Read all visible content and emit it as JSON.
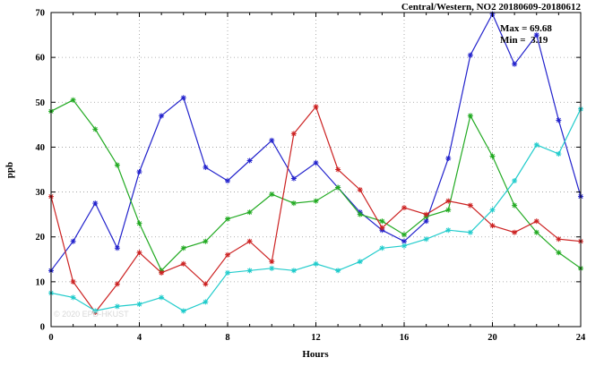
{
  "title": "Central/Western, NO2 20180609-20180612",
  "annotation": {
    "max_label": "Max = 69.68",
    "min_label": "Min =  3.19"
  },
  "watermark": "© 2020 EPD-HKUST",
  "axes": {
    "ylabel": "ppb",
    "xlabel": "Hours"
  },
  "chart_data": {
    "type": "line",
    "title": "Central/Western, NO2 20180609-20180612",
    "xlabel": "Hours",
    "ylabel": "ppb",
    "xlim": [
      0,
      24
    ],
    "ylim": [
      0,
      70
    ],
    "xticks": [
      0,
      4,
      8,
      12,
      16,
      20,
      24
    ],
    "yticks": [
      0,
      10,
      20,
      30,
      40,
      50,
      60,
      70
    ],
    "minor_xtick_every": 1,
    "grid": true,
    "legend": "none",
    "marker": "asterisk",
    "annotations": [
      "Max = 69.68",
      "Min =  3.19"
    ],
    "x": [
      0,
      1,
      2,
      3,
      4,
      5,
      6,
      7,
      8,
      9,
      10,
      11,
      12,
      13,
      14,
      15,
      16,
      17,
      18,
      19,
      20,
      21,
      22,
      23,
      24
    ],
    "series": [
      {
        "name": "blue",
        "color": "#2222cc",
        "values": [
          12.5,
          19,
          27.5,
          17.5,
          34.5,
          47,
          51,
          35.5,
          32.5,
          37,
          41.5,
          33,
          36.5,
          31,
          25.5,
          21.5,
          19,
          23.5,
          37.5,
          60.5,
          69.68,
          58.5,
          65,
          46,
          29
        ]
      },
      {
        "name": "green",
        "color": "#22aa22",
        "values": [
          48,
          50.5,
          44,
          36,
          23,
          12.5,
          17.5,
          19,
          24,
          25.5,
          29.5,
          27.5,
          28,
          31,
          25,
          23.5,
          20.5,
          24.5,
          26,
          47,
          38,
          27,
          21,
          16.5,
          13
        ]
      },
      {
        "name": "red",
        "color": "#cc2222",
        "values": [
          29,
          10,
          3.19,
          9.5,
          16.5,
          12,
          14,
          9.5,
          16,
          19,
          14.5,
          43,
          49,
          35,
          30.5,
          22,
          26.5,
          25,
          28,
          27,
          22.5,
          21,
          23.5,
          19.5,
          19
        ]
      },
      {
        "name": "cyan",
        "color": "#22cccc",
        "values": [
          7.5,
          6.5,
          3.5,
          4.5,
          5,
          6.5,
          3.5,
          5.5,
          12,
          12.5,
          13,
          12.5,
          14,
          12.5,
          14.5,
          17.5,
          18,
          19.5,
          21.5,
          21,
          26,
          32.5,
          40.5,
          38.5,
          48.5
        ]
      }
    ]
  }
}
